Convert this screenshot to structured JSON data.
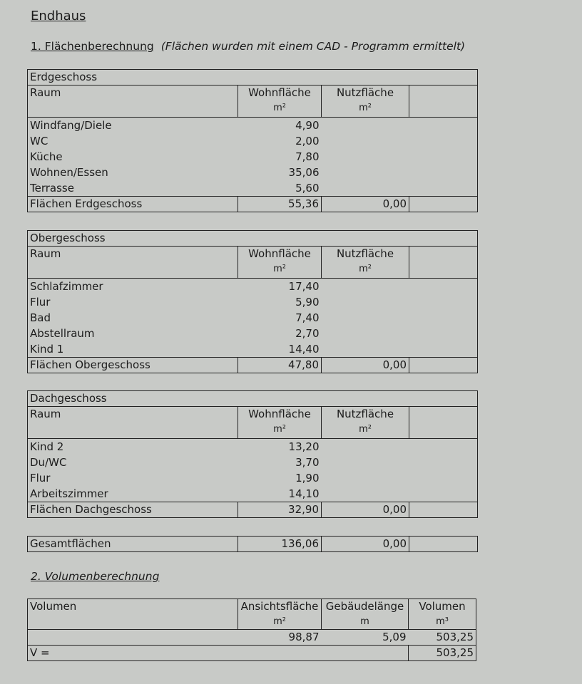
{
  "title": "Endhaus",
  "section1": {
    "heading": "1. Flächenberechnung",
    "note": "(Flächen wurden mit einem CAD - Programm ermittelt)"
  },
  "floors": [
    {
      "name": "Erdgeschoss",
      "headers": {
        "raum": "Raum",
        "wohn": "Wohnfläche",
        "nutz": "Nutzfläche",
        "unit": "m²"
      },
      "rows": [
        [
          "Windfang/Diele",
          "4,90"
        ],
        [
          "WC",
          "2,00"
        ],
        [
          "Küche",
          "7,80"
        ],
        [
          "Wohnen/Essen",
          "35,06"
        ],
        [
          "Terrasse",
          "5,60"
        ]
      ],
      "total": {
        "label": "Flächen Erdgeschoss",
        "wohn": "55,36",
        "nutz": "0,00"
      }
    },
    {
      "name": "Obergeschoss",
      "headers": {
        "raum": "Raum",
        "wohn": "Wohnfläche",
        "nutz": "Nutzfläche",
        "unit": "m²"
      },
      "rows": [
        [
          "Schlafzimmer",
          "17,40"
        ],
        [
          "Flur",
          "5,90"
        ],
        [
          "Bad",
          "7,40"
        ],
        [
          "Abstellraum",
          "2,70"
        ],
        [
          "Kind 1",
          "14,40"
        ]
      ],
      "total": {
        "label": "Flächen Obergeschoss",
        "wohn": "47,80",
        "nutz": "0,00"
      }
    },
    {
      "name": "Dachgeschoss",
      "headers": {
        "raum": "Raum",
        "wohn": "Wohnfläche",
        "nutz": "Nutzfläche",
        "unit": "m²"
      },
      "rows": [
        [
          "Kind 2",
          "13,20"
        ],
        [
          "Du/WC",
          "3,70"
        ],
        [
          "Flur",
          "1,90"
        ],
        [
          "Arbeitszimmer",
          "14,10"
        ]
      ],
      "total": {
        "label": "Flächen Dachgeschoss",
        "wohn": "32,90",
        "nutz": "0,00"
      }
    }
  ],
  "grand_total": {
    "label": "Gesamtflächen",
    "wohn": "136,06",
    "nutz": "0,00"
  },
  "section2": {
    "heading": "2. Volumenberechnung"
  },
  "volume": {
    "headers": {
      "label": "Volumen",
      "ansicht": "Ansichtsfläche",
      "ansicht_unit": "m²",
      "laenge": "Gebäudelänge",
      "laenge_unit": "m",
      "vol": "Volumen",
      "vol_unit": "m³"
    },
    "row": {
      "ansicht": "98,87",
      "laenge": "5,09",
      "vol": "503,25"
    },
    "total": {
      "label": "V =",
      "vol": "503,25"
    }
  }
}
